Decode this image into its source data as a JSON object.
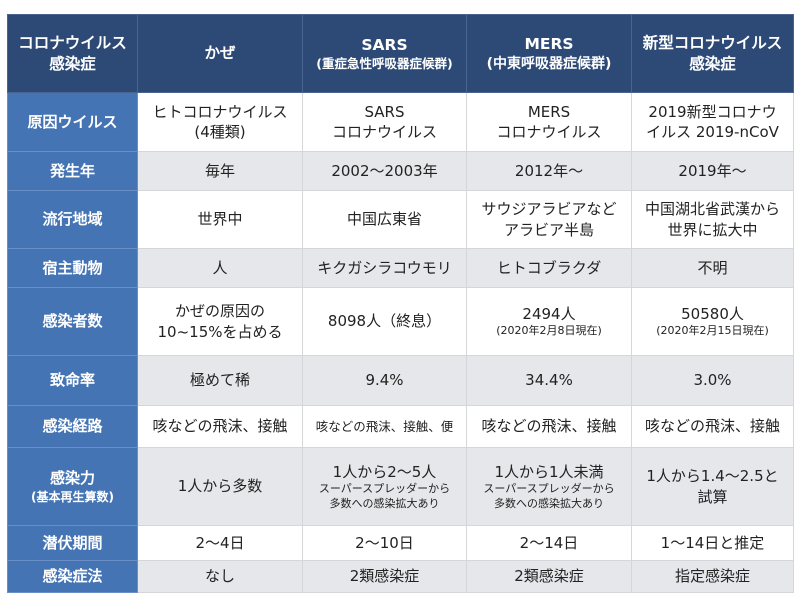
{
  "colors": {
    "header_bg": "#2d4a76",
    "row_header_bg": "#4574b4",
    "alt_row_bg": "#e6e7ea"
  },
  "header": [
    {
      "line1": "コロナウイルス",
      "line2": "感染症"
    },
    {
      "line1": "かぜ",
      "line2": ""
    },
    {
      "line1": "SARS",
      "line2": "(重症急性呼吸器症候群)"
    },
    {
      "line1": "MERS",
      "line2": "(中東呼吸器症候群)"
    },
    {
      "line1": "新型コロナウイルス",
      "line2": "感染症"
    }
  ],
  "rows": [
    {
      "label": "原因ウイルス",
      "cells": [
        [
          "ヒトコロナウイルス",
          "(4種類)"
        ],
        [
          "SARS",
          "コロナウイルス"
        ],
        [
          "MERS",
          "コロナウイルス"
        ],
        [
          "2019新型コロナウ",
          "イルス 2019-nCoV"
        ]
      ]
    },
    {
      "label": "発生年",
      "cells": [
        [
          "毎年"
        ],
        [
          "2002〜2003年"
        ],
        [
          "2012年〜"
        ],
        [
          "2019年〜"
        ]
      ]
    },
    {
      "label": "流行地域",
      "cells": [
        [
          "世界中"
        ],
        [
          "中国広東省"
        ],
        [
          "サウジアラビアなど",
          "アラビア半島"
        ],
        [
          "中国湖北省武漢から",
          "世界に拡大中"
        ]
      ]
    },
    {
      "label": "宿主動物",
      "cells": [
        [
          "人"
        ],
        [
          "キクガシラコウモリ"
        ],
        [
          "ヒトコブラクダ"
        ],
        [
          "不明"
        ]
      ]
    },
    {
      "label": "感染者数",
      "cells": [
        [
          "かぜの原因の",
          "10~15%を占める"
        ],
        [
          "8098人（終息）"
        ],
        [
          "2494人",
          "(2020年2月8日現在)"
        ],
        [
          "50580人",
          "(2020年2月15日現在)"
        ]
      ]
    },
    {
      "label": "致命率",
      "cells": [
        [
          "極めて稀"
        ],
        [
          "9.4%"
        ],
        [
          "34.4%"
        ],
        [
          "3.0%"
        ]
      ]
    },
    {
      "label": "感染経路",
      "cells": [
        [
          "咳などの飛沫、接触"
        ],
        [
          "咳などの飛沫、接触、便"
        ],
        [
          "咳などの飛沫、接触"
        ],
        [
          "咳などの飛沫、接触"
        ]
      ]
    },
    {
      "label": "感染力",
      "sublabel": "(基本再生算数)",
      "cells": [
        [
          "1人から多数"
        ],
        [
          "1人から2〜5人",
          "スーパースプレッダーから",
          "多数への感染拡大あり"
        ],
        [
          "1人から1人未満",
          "スーパースプレッダーから",
          "多数への感染拡大あり"
        ],
        [
          "1人から1.4〜2.5と",
          "試算"
        ]
      ]
    },
    {
      "label": "潜伏期間",
      "cells": [
        [
          "2〜4日"
        ],
        [
          "2〜10日"
        ],
        [
          "2〜14日"
        ],
        [
          "1〜14日と推定"
        ]
      ]
    },
    {
      "label": "感染症法",
      "cells": [
        [
          "なし"
        ],
        [
          "2類感染症"
        ],
        [
          "2類感染症"
        ],
        [
          "指定感染症"
        ]
      ]
    }
  ]
}
